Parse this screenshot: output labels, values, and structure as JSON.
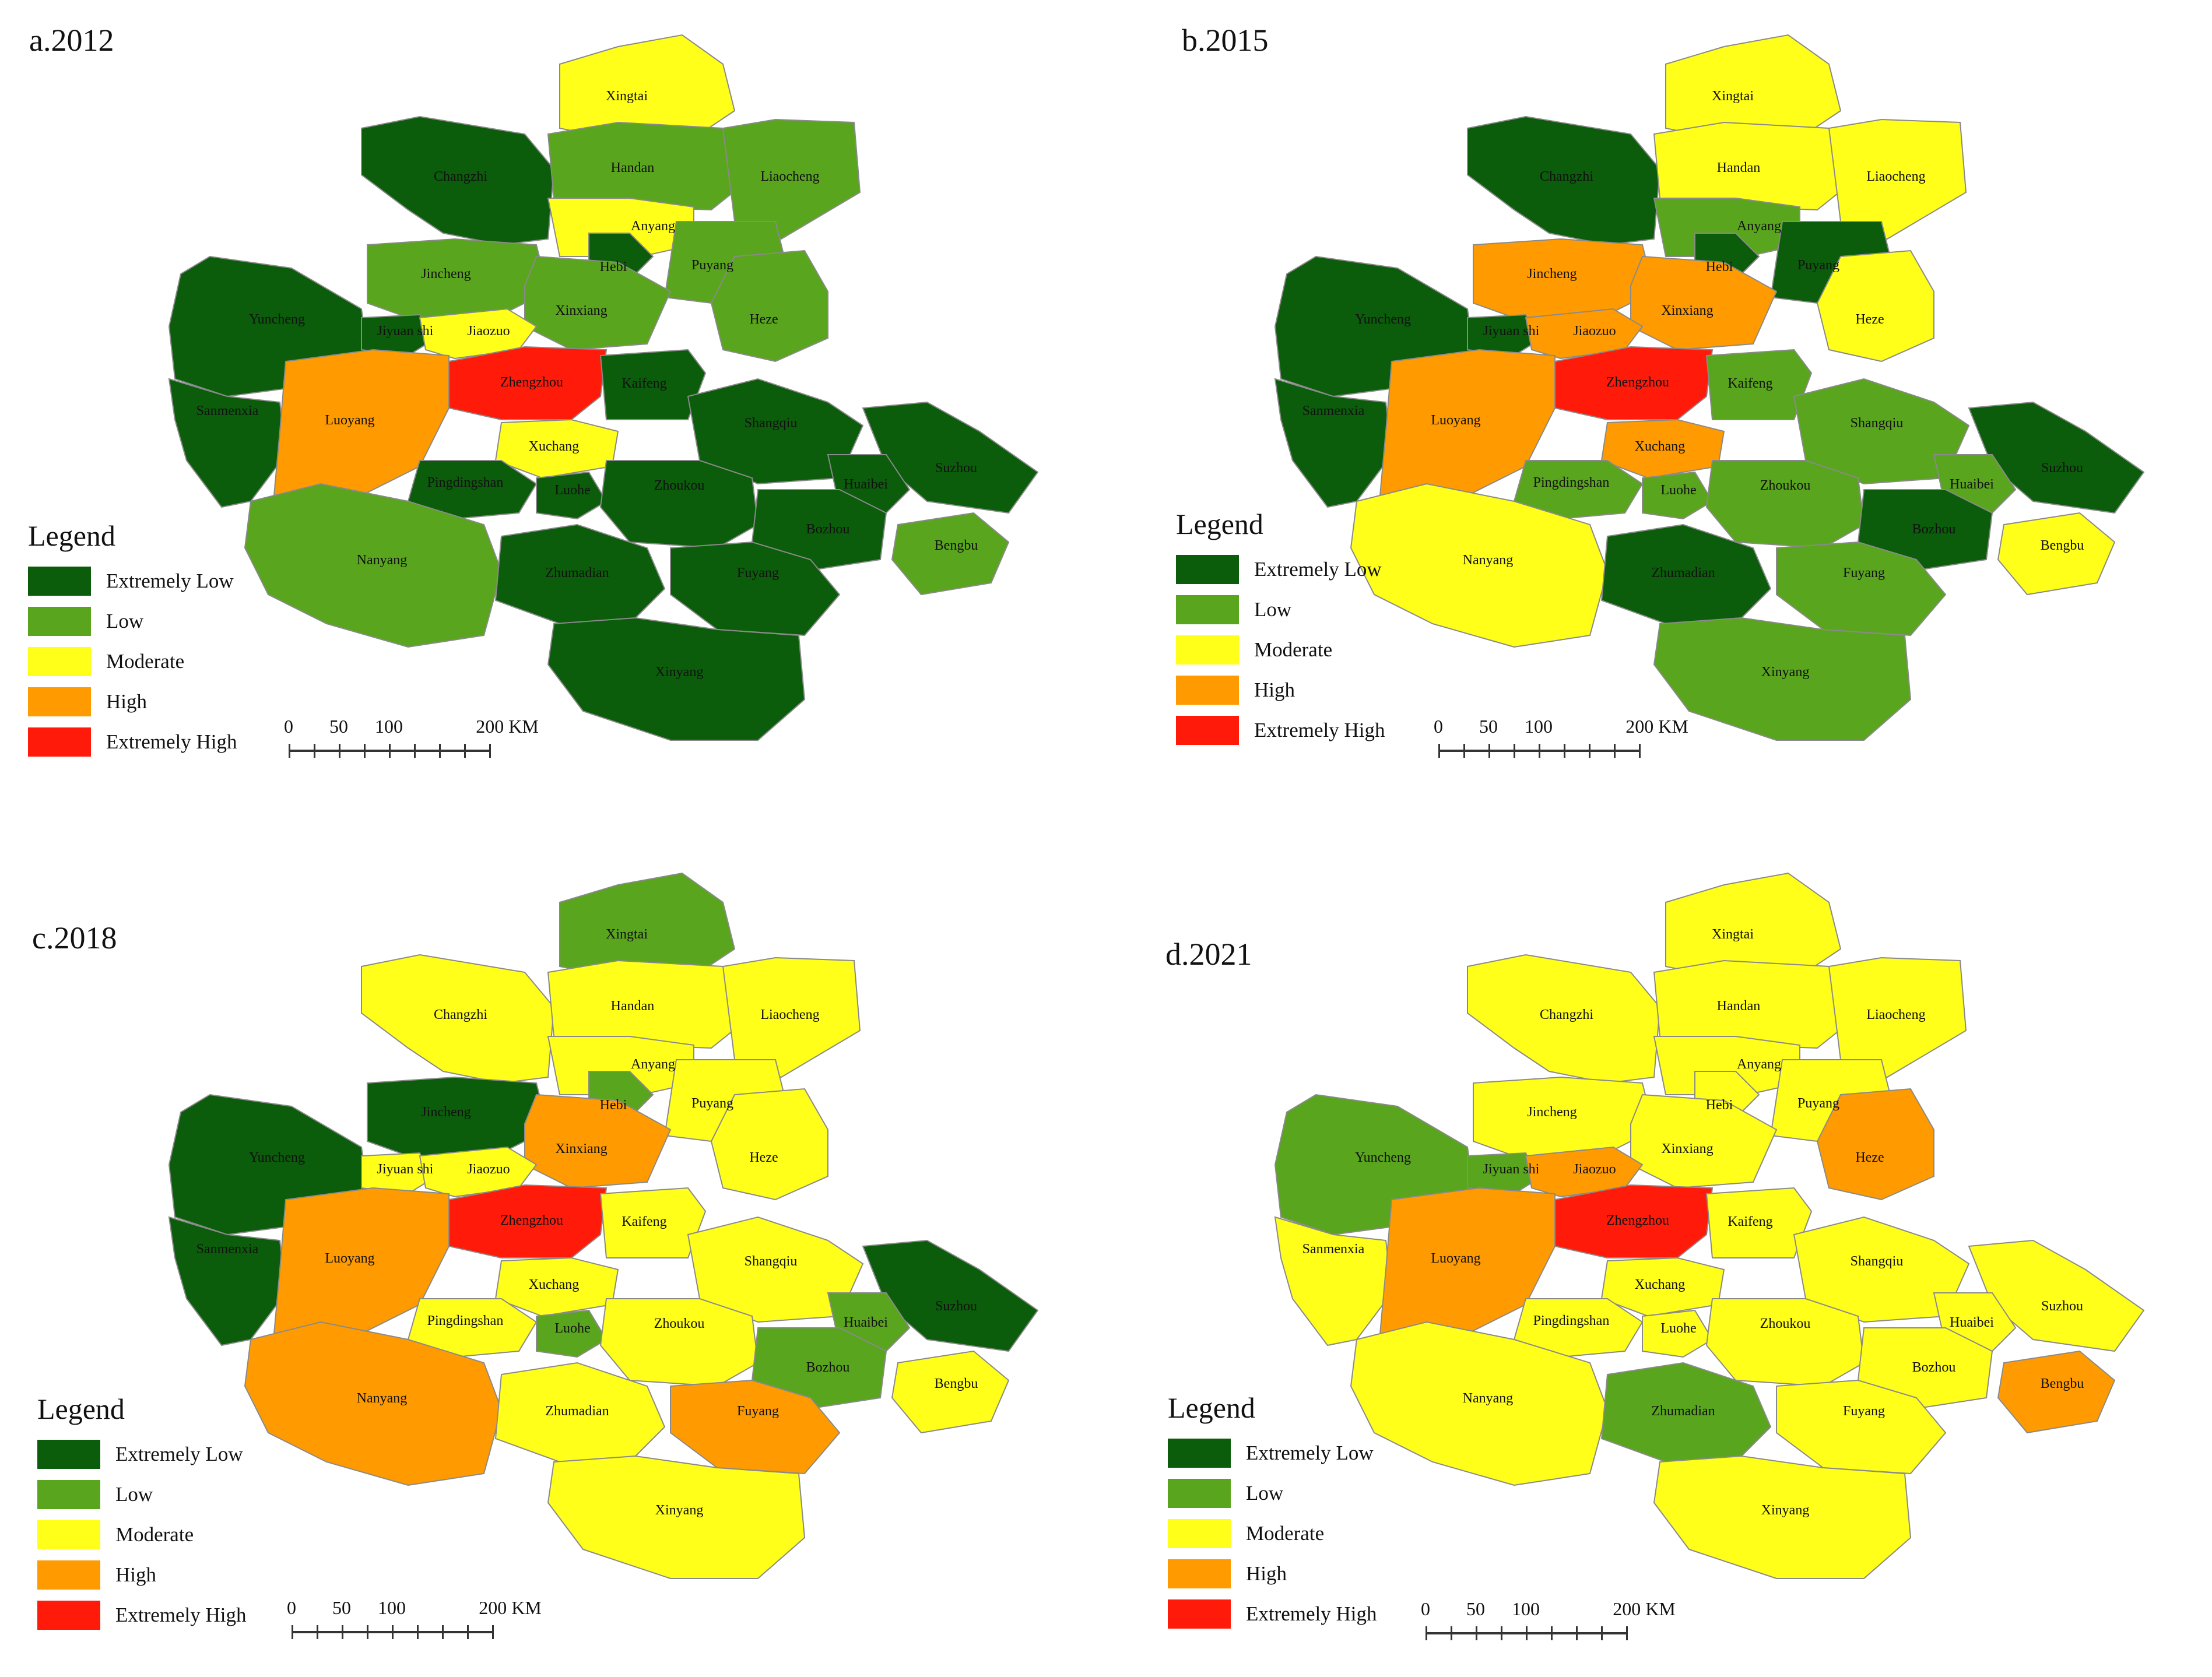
{
  "legend": {
    "title": "Legend",
    "classes": [
      {
        "label": "Extremely Low",
        "color": "#0b5c0b"
      },
      {
        "label": "Low",
        "color": "#5aa51e"
      },
      {
        "label": "Moderate",
        "color": "#ffff1a"
      },
      {
        "label": "High",
        "color": "#ff9a00"
      },
      {
        "label": "Extremely High",
        "color": "#ff1a0a"
      }
    ]
  },
  "scalebar": {
    "ticks": [
      "0",
      "50",
      "100",
      "200 KM"
    ]
  },
  "cities": [
    "Xingtai",
    "Changzhi",
    "Handan",
    "Liaocheng",
    "Anyang",
    "Hebi",
    "Puyang",
    "Jincheng",
    "Xinxiang",
    "Heze",
    "Yuncheng",
    "Jiyuan shi",
    "Jiaozuo",
    "Zhengzhou",
    "Kaifeng",
    "Sanmenxia",
    "Luoyang",
    "Xuchang",
    "Shangqiu",
    "Suzhou",
    "Pingdingshan",
    "Luohe",
    "Zhoukou",
    "Huaibei",
    "Bozhou",
    "Bengbu",
    "Nanyang",
    "Zhumadian",
    "Fuyang",
    "Xinyang"
  ],
  "panels": [
    {
      "title": "a.2012",
      "levels": {
        "Xingtai": 2,
        "Changzhi": 0,
        "Handan": 1,
        "Liaocheng": 1,
        "Anyang": 2,
        "Hebi": 0,
        "Puyang": 1,
        "Jincheng": 1,
        "Xinxiang": 1,
        "Heze": 1,
        "Yuncheng": 0,
        "Jiyuan shi": 0,
        "Jiaozuo": 2,
        "Zhengzhou": 4,
        "Kaifeng": 0,
        "Sanmenxia": 0,
        "Luoyang": 3,
        "Xuchang": 2,
        "Shangqiu": 0,
        "Suzhou": 0,
        "Pingdingshan": 0,
        "Luohe": 0,
        "Zhoukou": 0,
        "Huaibei": 0,
        "Bozhou": 0,
        "Bengbu": 1,
        "Nanyang": 1,
        "Zhumadian": 0,
        "Fuyang": 0,
        "Xinyang": 0
      }
    },
    {
      "title": "b.2015",
      "levels": {
        "Xingtai": 2,
        "Changzhi": 0,
        "Handan": 2,
        "Liaocheng": 2,
        "Anyang": 1,
        "Hebi": 0,
        "Puyang": 0,
        "Jincheng": 3,
        "Xinxiang": 3,
        "Heze": 2,
        "Yuncheng": 0,
        "Jiyuan shi": 0,
        "Jiaozuo": 3,
        "Zhengzhou": 4,
        "Kaifeng": 1,
        "Sanmenxia": 0,
        "Luoyang": 3,
        "Xuchang": 3,
        "Shangqiu": 1,
        "Suzhou": 0,
        "Pingdingshan": 1,
        "Luohe": 1,
        "Zhoukou": 1,
        "Huaibei": 1,
        "Bozhou": 0,
        "Bengbu": 2,
        "Nanyang": 2,
        "Zhumadian": 0,
        "Fuyang": 1,
        "Xinyang": 1
      }
    },
    {
      "title": "c.2018",
      "levels": {
        "Xingtai": 1,
        "Changzhi": 2,
        "Handan": 2,
        "Liaocheng": 2,
        "Anyang": 2,
        "Hebi": 1,
        "Puyang": 2,
        "Jincheng": 0,
        "Xinxiang": 3,
        "Heze": 2,
        "Yuncheng": 0,
        "Jiyuan shi": 2,
        "Jiaozuo": 2,
        "Zhengzhou": 4,
        "Kaifeng": 2,
        "Sanmenxia": 0,
        "Luoyang": 3,
        "Xuchang": 2,
        "Shangqiu": 2,
        "Suzhou": 0,
        "Pingdingshan": 2,
        "Luohe": 1,
        "Zhoukou": 2,
        "Huaibei": 1,
        "Bozhou": 1,
        "Bengbu": 2,
        "Nanyang": 3,
        "Zhumadian": 2,
        "Fuyang": 3,
        "Xinyang": 2
      }
    },
    {
      "title": "d.2021",
      "levels": {
        "Xingtai": 2,
        "Changzhi": 2,
        "Handan": 2,
        "Liaocheng": 2,
        "Anyang": 2,
        "Hebi": 2,
        "Puyang": 2,
        "Jincheng": 2,
        "Xinxiang": 2,
        "Heze": 3,
        "Yuncheng": 1,
        "Jiyuan shi": 1,
        "Jiaozuo": 3,
        "Zhengzhou": 4,
        "Kaifeng": 2,
        "Sanmenxia": 2,
        "Luoyang": 3,
        "Xuchang": 2,
        "Shangqiu": 2,
        "Suzhou": 2,
        "Pingdingshan": 2,
        "Luohe": 2,
        "Zhoukou": 2,
        "Huaibei": 2,
        "Bozhou": 2,
        "Bengbu": 3,
        "Nanyang": 2,
        "Zhumadian": 1,
        "Fuyang": 2,
        "Xinyang": 2
      }
    }
  ]
}
